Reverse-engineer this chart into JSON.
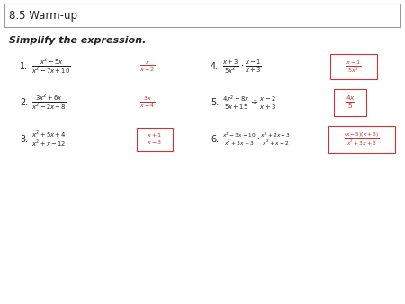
{
  "title": "8.5 Warm-up",
  "instruction": "Simplify the expression.",
  "bg_color": "#ffffff",
  "answer_box_color": "#cc3333",
  "title_box_edge": "#999999",
  "font_black": "#222222",
  "figsize": [
    4.5,
    3.38
  ],
  "dpi": 100
}
